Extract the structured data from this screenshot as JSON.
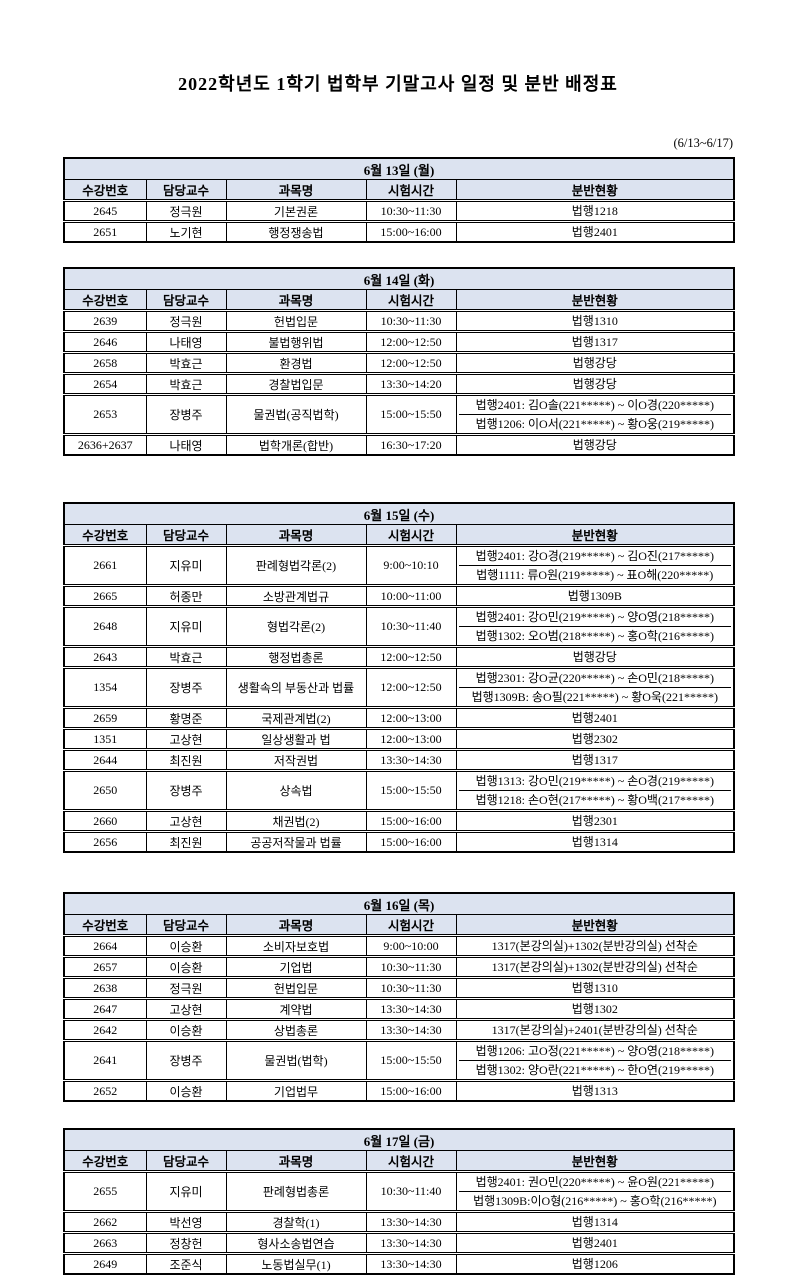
{
  "page": {
    "title": "2022학년도 1학기 법학부 기말고사 일정 및 분반 배정표",
    "date_range": "(6/13~6/17)"
  },
  "colors": {
    "header_bg": "#dce3f0",
    "border": "#000000",
    "page_bg": "#ffffff"
  },
  "columns": [
    "수강번호",
    "담당교수",
    "과목명",
    "시험시간",
    "분반현황"
  ],
  "tables": [
    {
      "day": "6월 13일 (월)",
      "rows": [
        {
          "no": "2645",
          "prof": "정극원",
          "course": "기본권론",
          "time": "10:30~11:30",
          "assign": [
            "법행1218"
          ]
        },
        {
          "no": "2651",
          "prof": "노기현",
          "course": "행정쟁송법",
          "time": "15:00~16:00",
          "assign": [
            "법행2401"
          ]
        }
      ]
    },
    {
      "day": "6월 14일 (화)",
      "rows": [
        {
          "no": "2639",
          "prof": "정극원",
          "course": "헌법입문",
          "time": "10:30~11:30",
          "assign": [
            "법행1310"
          ]
        },
        {
          "no": "2646",
          "prof": "나태영",
          "course": "불법행위법",
          "time": "12:00~12:50",
          "assign": [
            "법행1317"
          ]
        },
        {
          "no": "2658",
          "prof": "박효근",
          "course": "환경법",
          "time": "12:00~12:50",
          "assign": [
            "법행강당"
          ]
        },
        {
          "no": "2654",
          "prof": "박효근",
          "course": "경찰법입문",
          "time": "13:30~14:20",
          "assign": [
            "법행강당"
          ]
        },
        {
          "no": "2653",
          "prof": "장병주",
          "course": "물권법(공직법학)",
          "time": "15:00~15:50",
          "assign": [
            "법행2401: 김O솔(221*****) ~ 이O경(220*****)",
            "법행1206: 이O서(221*****) ~ 황O웅(219*****)"
          ]
        },
        {
          "no": "2636+2637",
          "prof": "나태영",
          "course": "법학개론(합반)",
          "time": "16:30~17:20",
          "assign": [
            "법행강당"
          ]
        }
      ]
    },
    {
      "day": "6월 15일 (수)",
      "rows": [
        {
          "no": "2661",
          "prof": "지유미",
          "course": "판례형법각론(2)",
          "time": "9:00~10:10",
          "assign": [
            "법행2401: 강O경(219*****) ~ 김O진(217*****)",
            "법행1111: 류O원(219*****) ~ 표O해(220*****)"
          ]
        },
        {
          "no": "2665",
          "prof": "허종만",
          "course": "소방관계법규",
          "time": "10:00~11:00",
          "assign": [
            "법행1309B"
          ]
        },
        {
          "no": "2648",
          "prof": "지유미",
          "course": "형법각론(2)",
          "time": "10:30~11:40",
          "assign": [
            "법행2401: 강O민(219*****) ~ 양O영(218*****)",
            "법행1302: 오O범(218*****) ~ 홍O학(216*****)"
          ]
        },
        {
          "no": "2643",
          "prof": "박효근",
          "course": "행정법총론",
          "time": "12:00~12:50",
          "assign": [
            "법행강당"
          ]
        },
        {
          "no": "1354",
          "prof": "장병주",
          "course": "생활속의 부동산과 법률",
          "time": "12:00~12:50",
          "assign": [
            "법행2301: 강O균(220*****) ~ 손O민(218*****)",
            "법행1309B: 송O필(221*****) ~ 황O욱(221*****)"
          ]
        },
        {
          "no": "2659",
          "prof": "황명준",
          "course": "국제관계법(2)",
          "time": "12:00~13:00",
          "assign": [
            "법행2401"
          ]
        },
        {
          "no": "1351",
          "prof": "고상현",
          "course": "일상생활과 법",
          "time": "12:00~13:00",
          "assign": [
            "법행2302"
          ]
        },
        {
          "no": "2644",
          "prof": "최진원",
          "course": "저작권법",
          "time": "13:30~14:30",
          "assign": [
            "법행1317"
          ]
        },
        {
          "no": "2650",
          "prof": "장병주",
          "course": "상속법",
          "time": "15:00~15:50",
          "assign": [
            "법행1313: 강O민(219*****) ~ 손O경(219*****)",
            "법행1218: 손O현(217*****) ~ 황O백(217*****)"
          ]
        },
        {
          "no": "2660",
          "prof": "고상현",
          "course": "채권법(2)",
          "time": "15:00~16:00",
          "assign": [
            "법행2301"
          ]
        },
        {
          "no": "2656",
          "prof": "최진원",
          "course": "공공저작물과 법률",
          "time": "15:00~16:00",
          "assign": [
            "법행1314"
          ]
        }
      ]
    },
    {
      "day": "6월 16일 (목)",
      "rows": [
        {
          "no": "2664",
          "prof": "이승환",
          "course": "소비자보호법",
          "time": "9:00~10:00",
          "assign": [
            "1317(본강의실)+1302(분반강의실) 선착순"
          ]
        },
        {
          "no": "2657",
          "prof": "이승환",
          "course": "기업법",
          "time": "10:30~11:30",
          "assign": [
            "1317(본강의실)+1302(분반강의실) 선착순"
          ]
        },
        {
          "no": "2638",
          "prof": "정극원",
          "course": "헌법입문",
          "time": "10:30~11:30",
          "assign": [
            "법행1310"
          ]
        },
        {
          "no": "2647",
          "prof": "고상현",
          "course": "계약법",
          "time": "13:30~14:30",
          "assign": [
            "법행1302"
          ]
        },
        {
          "no": "2642",
          "prof": "이승환",
          "course": "상법총론",
          "time": "13:30~14:30",
          "assign": [
            "1317(본강의실)+2401(분반강의실) 선착순"
          ]
        },
        {
          "no": "2641",
          "prof": "장병주",
          "course": "물권법(법학)",
          "time": "15:00~15:50",
          "assign": [
            "법행1206: 고O정(221*****) ~ 양O영(218*****)",
            "법행1302: 양O란(221*****) ~ 한O연(219*****)"
          ]
        },
        {
          "no": "2652",
          "prof": "이승환",
          "course": "기업법무",
          "time": "15:00~16:00",
          "assign": [
            "법행1313"
          ]
        }
      ]
    },
    {
      "day": "6월 17일 (금)",
      "rows": [
        {
          "no": "2655",
          "prof": "지유미",
          "course": "판례형법총론",
          "time": "10:30~11:40",
          "assign": [
            "법행2401: 권O민(220*****) ~ 윤O원(221*****)",
            "법행1309B:이O형(216*****) ~ 홍O학(216*****)"
          ]
        },
        {
          "no": "2662",
          "prof": "박선영",
          "course": "경찰학(1)",
          "time": "13:30~14:30",
          "assign": [
            "법행1314"
          ]
        },
        {
          "no": "2663",
          "prof": "정창헌",
          "course": "형사소송법연습",
          "time": "13:30~14:30",
          "assign": [
            "법행2401"
          ]
        },
        {
          "no": "2649",
          "prof": "조준식",
          "course": "노동법실무(1)",
          "time": "13:30~14:30",
          "assign": [
            "법행1206"
          ]
        }
      ]
    }
  ]
}
